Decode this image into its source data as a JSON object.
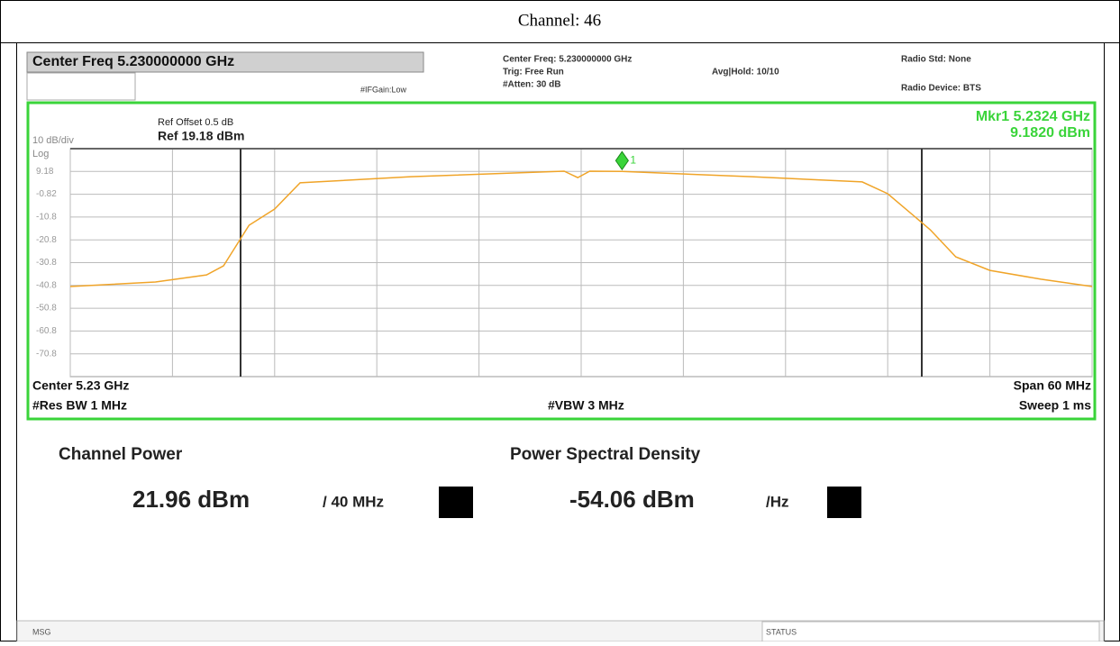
{
  "header": {
    "title": "Channel: 46"
  },
  "instrument": {
    "center_box": "Center Freq 5.230000000 GHz",
    "ifgain": "#IFGain:Low",
    "center_freq": "Center Freq: 5.230000000 GHz",
    "trig": "Trig: Free Run",
    "atten": "#Atten: 30 dB",
    "avg": "Avg|Hold: 10/10",
    "radio_std": "Radio Std: None",
    "radio_device": "Radio Device: BTS",
    "ref_offset": "Ref Offset 0.5 dB",
    "ref_level": "Ref 19.18 dBm",
    "scale": "10 dB/div",
    "log": "Log",
    "marker_freq": "Mkr1  5.2324 GHz",
    "marker_level": "9.1820 dBm",
    "center": "Center  5.23 GHz",
    "span": "Span 60 MHz",
    "rbw": "#Res BW  1 MHz",
    "vbw": "#VBW  3 MHz",
    "sweep": "Sweep  1 ms",
    "channel_power_label": "Channel Power",
    "channel_power_value": "21.96 dBm",
    "channel_power_unit": "/ 40 MHz",
    "psd_label": "Power Spectral Density",
    "psd_value": "-54.06 dBm",
    "psd_unit": "/Hz",
    "msg": "MSG",
    "status": "STATUS"
  },
  "chart_data": {
    "type": "line",
    "x": [
      5.2,
      5.205,
      5.208,
      5.209,
      5.2105,
      5.212,
      5.2135,
      5.22,
      5.229,
      5.2298,
      5.2305,
      5.2324,
      5.24,
      5.2465,
      5.248,
      5.2505,
      5.252,
      5.254,
      5.257,
      5.26
    ],
    "values": [
      -41.3,
      -39.3,
      -36.2,
      -32.2,
      -14.4,
      -7.3,
      4.2,
      6.9,
      9.3,
      6.5,
      9.3,
      9.18,
      6.9,
      4.6,
      -0.6,
      -16.4,
      -28.3,
      -34.2,
      -38.1,
      -41.3
    ],
    "color": "#f0a428",
    "xlim": [
      5.2,
      5.26
    ],
    "xticks": [
      5.2,
      5.206,
      5.212,
      5.218,
      5.224,
      5.23,
      5.236,
      5.242,
      5.248,
      5.254,
      5.26
    ],
    "ylim": [
      -80.82,
      19.18
    ],
    "yticks": [
      9.18,
      -0.82,
      {
        "value": -10.82,
        "label": "-10.8"
      },
      {
        "value": -20.82,
        "label": "-20.8"
      },
      {
        "value": -30.82,
        "label": "-30.8"
      },
      {
        "value": -40.82,
        "label": "-40.8"
      },
      {
        "value": -50.82,
        "label": "-50.8"
      },
      {
        "value": -60.82,
        "label": "-60.8"
      },
      {
        "value": -70.82,
        "label": "-70.8"
      }
    ],
    "channel_edges": [
      5.21,
      5.25
    ],
    "marker": {
      "label": "1",
      "x": 5.2324,
      "value": 9.182
    },
    "grid": true
  }
}
